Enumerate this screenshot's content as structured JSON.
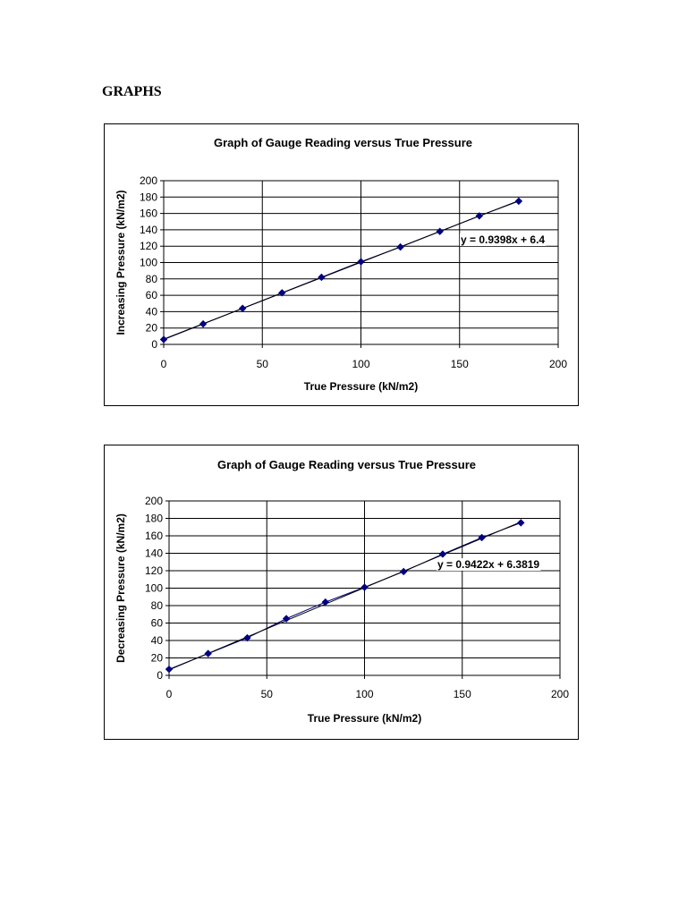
{
  "page": {
    "heading": "GRAPHS"
  },
  "chart_data": [
    {
      "type": "scatter",
      "title": "Graph of Gauge Reading versus True Pressure",
      "xlabel": "True Pressure (kN/m2)",
      "ylabel": "Increasing Pressure (kN/m2)",
      "xlim": [
        0,
        200
      ],
      "ylim": [
        0,
        200
      ],
      "xticks": [
        0,
        50,
        100,
        150,
        200
      ],
      "yticks": [
        0,
        20,
        40,
        60,
        80,
        100,
        120,
        140,
        160,
        180,
        200
      ],
      "grid": true,
      "legend": "none",
      "series": [
        {
          "x": [
            0,
            20,
            40,
            60,
            80,
            100,
            120,
            140,
            160,
            180
          ],
          "y": [
            6,
            25,
            44,
            63,
            82,
            101,
            119,
            138,
            157,
            175
          ],
          "color": "#000080"
        }
      ],
      "trendline": {
        "slope": 0.9398,
        "intercept": 6.4,
        "equation": "y = 0.9398x + 6.4"
      }
    },
    {
      "type": "scatter",
      "title": "Graph of Gauge Reading versus True Pressure",
      "xlabel": "True Pressure (kN/m2)",
      "ylabel": "Decreasing Pressure (kN/m2)",
      "xlim": [
        0,
        200
      ],
      "ylim": [
        0,
        200
      ],
      "xticks": [
        0,
        50,
        100,
        150,
        200
      ],
      "yticks": [
        0,
        20,
        40,
        60,
        80,
        100,
        120,
        140,
        160,
        180,
        200
      ],
      "grid": true,
      "legend": "none",
      "series": [
        {
          "x": [
            0,
            20,
            40,
            60,
            80,
            100,
            120,
            140,
            160,
            180
          ],
          "y": [
            7,
            25,
            43,
            65,
            84,
            101,
            119,
            139,
            158,
            175
          ],
          "color": "#000080"
        }
      ],
      "trendline": {
        "slope": 0.9422,
        "intercept": 6.3819,
        "equation": "y = 0.9422x + 6.3819"
      }
    }
  ]
}
